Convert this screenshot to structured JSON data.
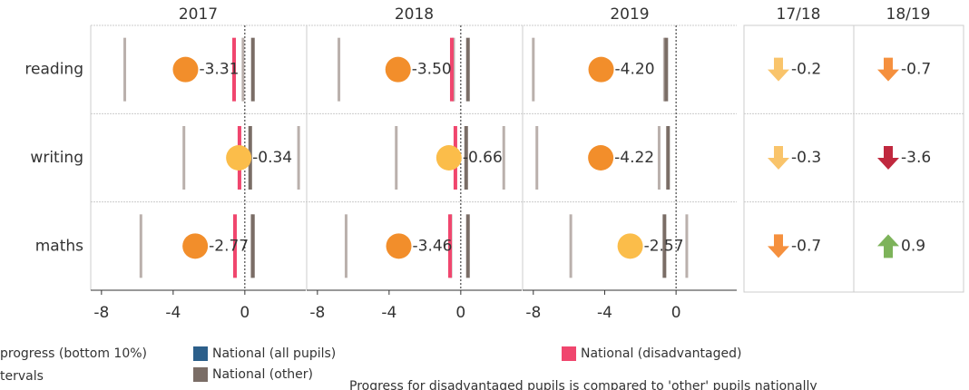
{
  "chart_data": {
    "type": "dot",
    "categories": [
      "reading",
      "writing",
      "maths"
    ],
    "xlim": [
      -8.6,
      3.4
    ],
    "xticks": [
      -8,
      -4,
      0
    ],
    "series": [
      {
        "name": "2017",
        "values": [
          -3.31,
          -0.34,
          -2.77
        ],
        "value_labels": [
          "-3.31",
          "-0.34",
          "-2.77"
        ],
        "colors": [
          "#f28e2b",
          "#fbbd4a",
          "#f28e2b"
        ],
        "ci_low": [
          -6.7,
          -3.4,
          -5.8
        ],
        "ci_high": [
          -0.1,
          3.0,
          0.4
        ],
        "national_disadvantaged": [
          -0.6,
          -0.3,
          -0.55
        ],
        "national_other": [
          0.45,
          0.3,
          0.45
        ]
      },
      {
        "name": "2018",
        "values": [
          -3.5,
          -0.66,
          -3.46
        ],
        "value_labels": [
          "-3.50",
          "-0.66",
          "-3.46"
        ],
        "colors": [
          "#f28e2b",
          "#fbbd4a",
          "#f28e2b"
        ],
        "ci_low": [
          -6.8,
          -3.6,
          -6.4
        ],
        "ci_high": [
          -0.4,
          2.4,
          -0.55
        ],
        "national_disadvantaged": [
          -0.5,
          -0.3,
          -0.6
        ],
        "national_other": [
          0.4,
          0.3,
          0.4
        ]
      },
      {
        "name": "2019",
        "values": [
          -4.2,
          -4.22,
          -2.57
        ],
        "value_labels": [
          "-4.20",
          "-4.22",
          "-2.57"
        ],
        "colors": [
          "#f28e2b",
          "#f28e2b",
          "#fbbd4a"
        ],
        "ci_low": [
          -8.0,
          -7.8,
          -5.9
        ],
        "ci_high": [
          -0.65,
          -0.95,
          0.6
        ],
        "national_disadvantaged": [
          null,
          null,
          null
        ],
        "national_other": [
          -0.55,
          -0.45,
          -0.65
        ]
      }
    ],
    "change": {
      "columns": [
        "17/18",
        "18/19"
      ],
      "values": [
        [
          -0.2,
          -0.3,
          -0.7
        ],
        [
          -0.7,
          -3.6,
          0.9
        ]
      ],
      "colors": [
        [
          "#f9c46b",
          "#f9c46b",
          "#f5903e"
        ],
        [
          "#f5903e",
          "#c0283e",
          "#7db35a"
        ]
      ]
    },
    "legend": [
      {
        "label": "progress (bottom 10%)"
      },
      {
        "label": "tervals"
      },
      {
        "label": "National (all pupils)",
        "color": "#2c5f8a"
      },
      {
        "label": "National (other)",
        "color": "#7a6d66"
      },
      {
        "label": "National (disadvantaged)",
        "color": "#f0466e"
      }
    ],
    "note": "Progress for disadvantaged pupils is compared to 'other' pupils nationally"
  }
}
